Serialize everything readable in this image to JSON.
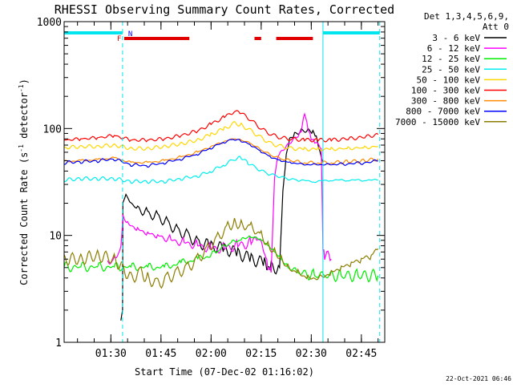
{
  "chart_data": {
    "type": "line",
    "title": "RHESSI Observing Summary Count Rates, Corrected",
    "xlabel": "Start Time (07-Dec-02 01:16:02)",
    "ylabel_prefix": "Corrected Count Rate (s",
    "ylabel_sup": "-1",
    "ylabel_mid": " detector",
    "ylabel_sup2": "-1",
    "ylabel_suffix": ")",
    "yscale": "log",
    "ylim": [
      1,
      1000
    ],
    "yticks": [
      {
        "value": 1,
        "label": "1"
      },
      {
        "value": 10,
        "label": "10"
      },
      {
        "value": 100,
        "label": "100"
      },
      {
        "value": 1000,
        "label": "1000"
      }
    ],
    "x_unit": "minutes after 01:16:02",
    "xlim": [
      0,
      96
    ],
    "xticks": [
      {
        "value": 14,
        "label": "01:30"
      },
      {
        "value": 29,
        "label": "01:45"
      },
      {
        "value": 44,
        "label": "02:00"
      },
      {
        "value": 59,
        "label": "02:15"
      },
      {
        "value": 74,
        "label": "02:30"
      },
      {
        "value": 89,
        "label": "02:45"
      }
    ],
    "legend_title": [
      "Det 1,3,4,5,6,9,",
      "Att 0"
    ],
    "legend_placement": "right",
    "footer": "22-Oct-2021 06:46",
    "flags": {
      "night_label": "N",
      "flare_label": "F",
      "night_color": "#00e5ee",
      "flare_color": "#e00000",
      "night_bars": [
        [
          0,
          17.5
        ],
        [
          77.5,
          94.5
        ]
      ],
      "flare_bars": [
        [
          18,
          37.5
        ],
        [
          57,
          59
        ],
        [
          63.5,
          74.5
        ]
      ],
      "night_boundaries": [
        0,
        17.5,
        77.5,
        94.5
      ]
    },
    "series": [
      {
        "name": "3 - 6 keV",
        "color": "#000000",
        "points": [
          [
            17,
            1.6
          ],
          [
            17.5,
            2
          ],
          [
            17.6,
            20
          ],
          [
            18.5,
            24
          ],
          [
            20,
            20
          ],
          [
            22,
            18
          ],
          [
            25,
            16
          ],
          [
            28,
            15
          ],
          [
            31,
            13
          ],
          [
            34,
            11
          ],
          [
            37,
            10
          ],
          [
            40,
            8.5
          ],
          [
            44,
            8
          ],
          [
            48,
            7.5
          ],
          [
            52,
            6.8
          ],
          [
            56,
            6
          ],
          [
            60,
            5.5
          ],
          [
            61,
            4.5
          ],
          [
            62,
            5
          ],
          [
            64.5,
            5
          ],
          [
            65.5,
            25
          ],
          [
            66.5,
            55
          ],
          [
            67.5,
            78
          ],
          [
            69,
            88
          ],
          [
            71,
            95
          ],
          [
            73,
            96
          ],
          [
            74.5,
            92
          ],
          [
            75.5,
            82
          ],
          [
            76.5,
            60
          ],
          [
            77.5,
            48
          ]
        ]
      },
      {
        "name": "6 - 12 keV",
        "color": "#ff00ff",
        "points": [
          [
            13,
            5.5
          ],
          [
            15,
            6
          ],
          [
            17,
            7.5
          ],
          [
            17.6,
            15
          ],
          [
            19,
            13
          ],
          [
            22,
            11.5
          ],
          [
            25,
            10.5
          ],
          [
            28,
            10
          ],
          [
            32,
            9
          ],
          [
            36,
            8.5
          ],
          [
            40,
            8
          ],
          [
            44,
            7.5
          ],
          [
            48,
            7.5
          ],
          [
            52,
            8
          ],
          [
            56,
            8.5
          ],
          [
            58,
            9.5
          ],
          [
            60,
            7
          ],
          [
            61,
            5
          ],
          [
            62,
            4.5
          ],
          [
            63,
            35
          ],
          [
            64,
            55
          ],
          [
            66,
            65
          ],
          [
            68,
            75
          ],
          [
            70,
            85
          ],
          [
            71,
            95
          ],
          [
            72,
            140
          ],
          [
            73,
            100
          ],
          [
            74,
            80
          ],
          [
            75,
            75
          ],
          [
            77,
            65
          ],
          [
            77.5,
            8
          ],
          [
            78,
            6.5
          ],
          [
            80,
            6
          ]
        ]
      },
      {
        "name": "12 - 25 keV",
        "color": "#00ee00",
        "points": [
          [
            0,
            5
          ],
          [
            5,
            5
          ],
          [
            10,
            5
          ],
          [
            15,
            5
          ],
          [
            20,
            5
          ],
          [
            25,
            5
          ],
          [
            30,
            5
          ],
          [
            35,
            5.5
          ],
          [
            40,
            6
          ],
          [
            44,
            6.5
          ],
          [
            47,
            7.5
          ],
          [
            50,
            8.5
          ],
          [
            53,
            9
          ],
          [
            55,
            9.5
          ],
          [
            57,
            9.5
          ],
          [
            59,
            9
          ],
          [
            61,
            8
          ],
          [
            63,
            7
          ],
          [
            65,
            6
          ],
          [
            67,
            5
          ],
          [
            70,
            4.5
          ],
          [
            75,
            4.2
          ],
          [
            78,
            4.2
          ],
          [
            83,
            4.2
          ],
          [
            88,
            4.2
          ],
          [
            94,
            4.2
          ]
        ]
      },
      {
        "name": "25 - 50 keV",
        "color": "#00eeee",
        "points": [
          [
            0,
            33
          ],
          [
            5,
            34
          ],
          [
            10,
            34
          ],
          [
            15,
            34
          ],
          [
            20,
            32
          ],
          [
            25,
            32
          ],
          [
            30,
            32
          ],
          [
            35,
            34
          ],
          [
            40,
            36
          ],
          [
            44,
            40
          ],
          [
            48,
            46
          ],
          [
            51,
            52
          ],
          [
            53,
            54
          ],
          [
            55,
            48
          ],
          [
            58,
            42
          ],
          [
            61,
            38
          ],
          [
            64,
            36
          ],
          [
            67,
            34
          ],
          [
            70,
            33
          ],
          [
            75,
            32
          ],
          [
            80,
            33
          ],
          [
            85,
            33
          ],
          [
            90,
            33
          ],
          [
            94,
            33
          ]
        ]
      },
      {
        "name": "50 - 100 keV",
        "color": "#ffd700",
        "points": [
          [
            0,
            66
          ],
          [
            5,
            68
          ],
          [
            10,
            68
          ],
          [
            15,
            70
          ],
          [
            20,
            65
          ],
          [
            25,
            65
          ],
          [
            30,
            68
          ],
          [
            35,
            72
          ],
          [
            40,
            78
          ],
          [
            44,
            88
          ],
          [
            48,
            100
          ],
          [
            51,
            112
          ],
          [
            53,
            108
          ],
          [
            56,
            95
          ],
          [
            59,
            82
          ],
          [
            62,
            72
          ],
          [
            65,
            68
          ],
          [
            68,
            65
          ],
          [
            72,
            64
          ],
          [
            76,
            64
          ],
          [
            80,
            64
          ],
          [
            85,
            65
          ],
          [
            90,
            66
          ],
          [
            94,
            68
          ]
        ]
      },
      {
        "name": "100 - 300 keV",
        "color": "#ff0000",
        "points": [
          [
            0,
            78
          ],
          [
            5,
            80
          ],
          [
            10,
            82
          ],
          [
            15,
            86
          ],
          [
            20,
            78
          ],
          [
            25,
            78
          ],
          [
            30,
            80
          ],
          [
            35,
            86
          ],
          [
            40,
            95
          ],
          [
            44,
            110
          ],
          [
            48,
            128
          ],
          [
            51,
            145
          ],
          [
            53,
            140
          ],
          [
            56,
            120
          ],
          [
            59,
            100
          ],
          [
            62,
            88
          ],
          [
            65,
            82
          ],
          [
            68,
            80
          ],
          [
            72,
            78
          ],
          [
            76,
            78
          ],
          [
            80,
            78
          ],
          [
            85,
            80
          ],
          [
            90,
            83
          ],
          [
            94,
            88
          ]
        ]
      },
      {
        "name": "300 - 800 keV",
        "color": "#ff8c00",
        "points": [
          [
            0,
            49
          ],
          [
            5,
            50
          ],
          [
            10,
            51
          ],
          [
            15,
            53
          ],
          [
            20,
            48
          ],
          [
            25,
            48
          ],
          [
            30,
            50
          ],
          [
            35,
            54
          ],
          [
            40,
            60
          ],
          [
            44,
            68
          ],
          [
            48,
            76
          ],
          [
            51,
            80
          ],
          [
            53,
            78
          ],
          [
            56,
            72
          ],
          [
            59,
            63
          ],
          [
            62,
            56
          ],
          [
            65,
            52
          ],
          [
            68,
            50
          ],
          [
            72,
            48
          ],
          [
            76,
            48
          ],
          [
            80,
            48
          ],
          [
            85,
            49
          ],
          [
            90,
            50
          ],
          [
            94,
            52
          ]
        ]
      },
      {
        "name": "800 - 7000 keV",
        "color": "#0000ff",
        "points": [
          [
            0,
            48
          ],
          [
            5,
            49
          ],
          [
            10,
            50
          ],
          [
            15,
            52
          ],
          [
            20,
            46
          ],
          [
            25,
            45
          ],
          [
            30,
            48
          ],
          [
            35,
            52
          ],
          [
            40,
            58
          ],
          [
            44,
            66
          ],
          [
            48,
            75
          ],
          [
            51,
            80
          ],
          [
            53,
            77
          ],
          [
            56,
            70
          ],
          [
            59,
            61
          ],
          [
            62,
            54
          ],
          [
            65,
            50
          ],
          [
            68,
            48
          ],
          [
            72,
            46
          ],
          [
            76,
            46
          ],
          [
            80,
            46
          ],
          [
            85,
            47
          ],
          [
            90,
            48
          ],
          [
            94,
            50
          ]
        ]
      },
      {
        "name": "7000 - 15000 keV",
        "color": "#8b7d00",
        "points": [
          [
            0,
            6
          ],
          [
            5,
            6
          ],
          [
            10,
            6.5
          ],
          [
            15,
            6
          ],
          [
            17.5,
            5
          ],
          [
            20,
            4
          ],
          [
            23,
            4.5
          ],
          [
            25,
            4
          ],
          [
            28,
            3.5
          ],
          [
            31,
            4
          ],
          [
            34,
            4.5
          ],
          [
            37,
            5
          ],
          [
            40,
            6
          ],
          [
            43,
            7.5
          ],
          [
            46,
            9.5
          ],
          [
            49,
            12
          ],
          [
            51,
            13
          ],
          [
            53,
            12.5
          ],
          [
            56,
            12
          ],
          [
            59,
            10
          ],
          [
            61,
            8
          ],
          [
            63,
            7
          ],
          [
            65,
            6
          ],
          [
            67,
            5
          ],
          [
            70,
            4.5
          ],
          [
            73,
            4
          ],
          [
            77,
            4
          ],
          [
            80,
            4.5
          ],
          [
            83,
            5
          ],
          [
            86,
            5.5
          ],
          [
            89,
            6
          ],
          [
            92,
            6.5
          ],
          [
            94,
            7.5
          ]
        ]
      }
    ]
  }
}
